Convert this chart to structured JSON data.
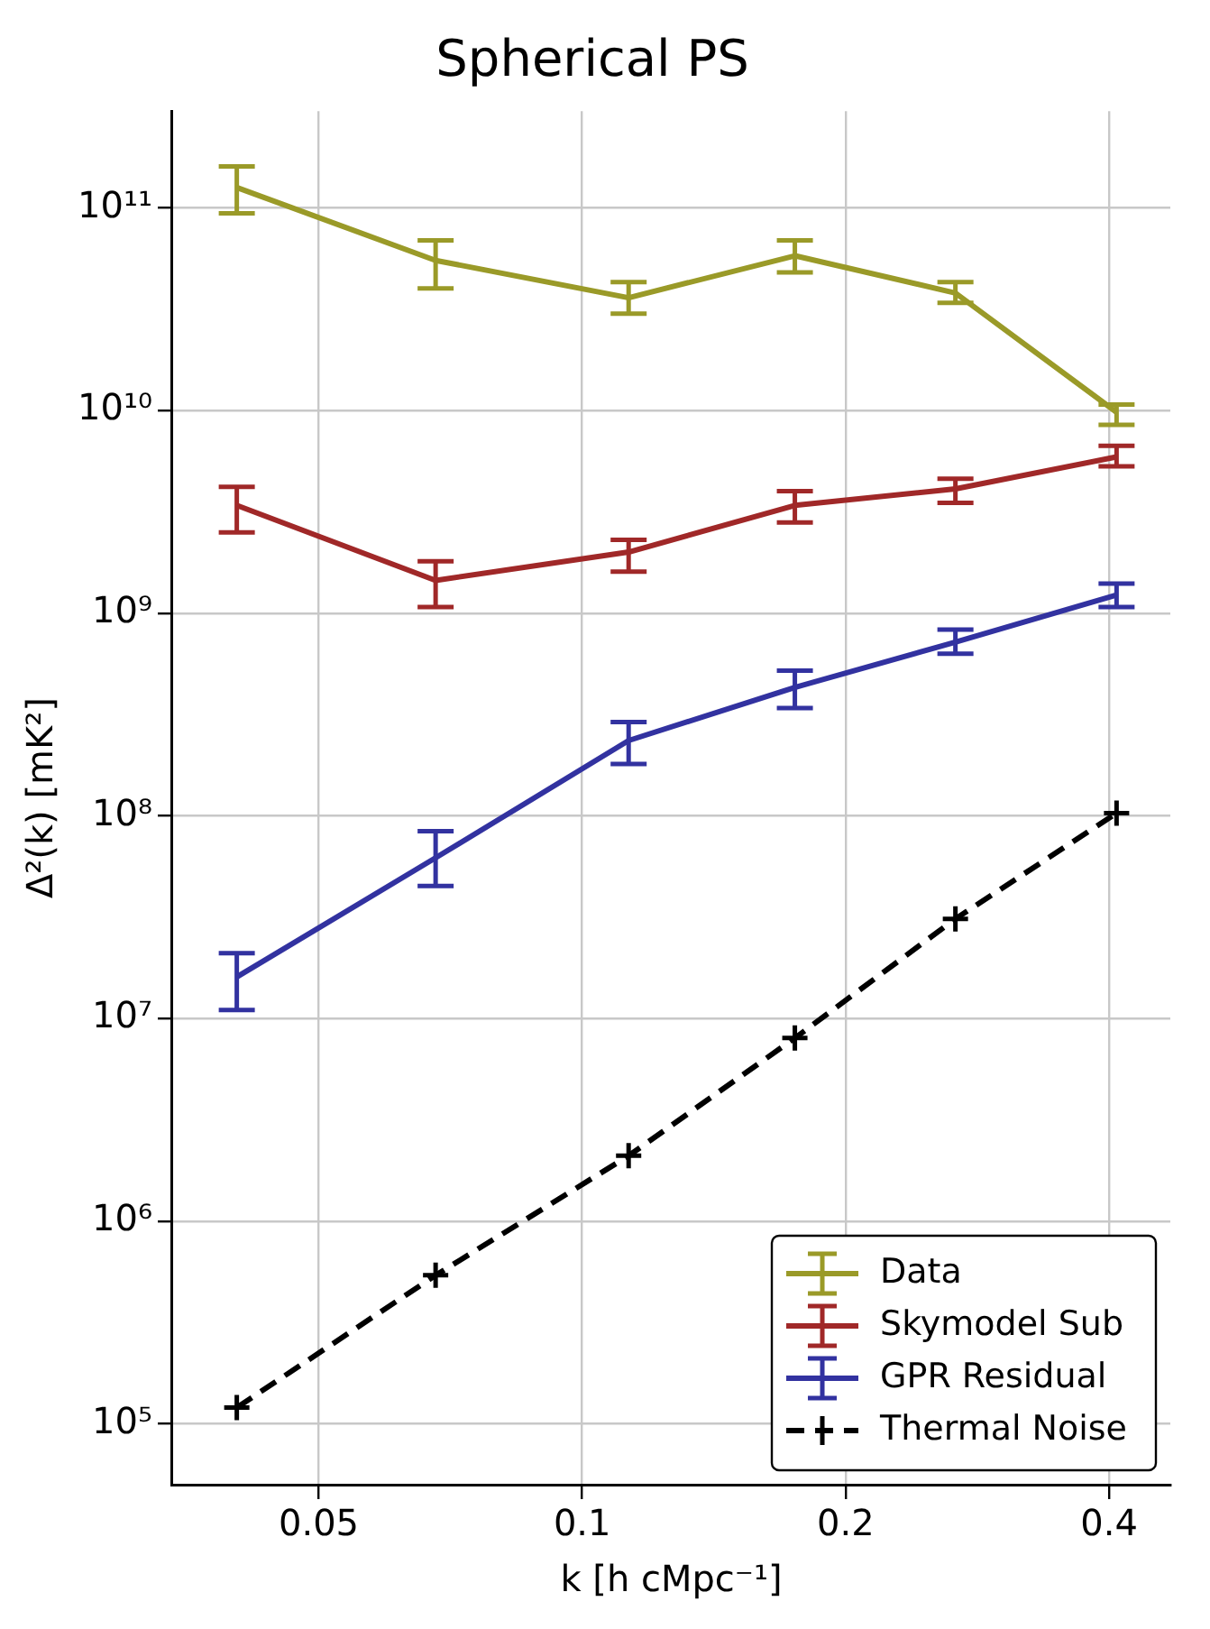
{
  "chart_data": {
    "type": "line",
    "title": "Spherical PS",
    "xlabel": "k [h cMpc⁻¹]",
    "ylabel": "Δ²(k) [mK²]",
    "x": [
      0.0403,
      0.068,
      0.113,
      0.175,
      0.267,
      0.408
    ],
    "series": [
      {
        "name": "Data",
        "color": "#9a9a28",
        "values": [
          126000000000.0,
          55000000000.0,
          36000000000.0,
          58000000000.0,
          38000000000.0,
          9800000000.0
        ],
        "errors": [
          [
            94000000000.0,
            160000000000.0
          ],
          [
            40000000000.0,
            69000000000.0
          ],
          [
            30000000000.0,
            43000000000.0
          ],
          [
            48000000000.0,
            69000000000.0
          ],
          [
            34000000000.0,
            43000000000.0
          ],
          [
            8500000000.0,
            10700000000.0
          ]
        ]
      },
      {
        "name": "Skymodel Sub",
        "color": "#a02828",
        "values": [
          3400000000.0,
          1450000000.0,
          2000000000.0,
          3400000000.0,
          4100000000.0,
          5900000000.0
        ],
        "errors": [
          [
            2500000000.0,
            4200000000.0
          ],
          [
            1070000000.0,
            1800000000.0
          ],
          [
            1600000000.0,
            2300000000.0
          ],
          [
            2800000000.0,
            4000000000.0
          ],
          [
            3500000000.0,
            4600000000.0
          ],
          [
            5300000000.0,
            6700000000.0
          ]
        ]
      },
      {
        "name": "GPR Residual",
        "color": "#3232a0",
        "values": [
          16000000.0,
          62000000.0,
          235000000.0,
          430000000.0,
          720000000.0,
          1230000000.0
        ],
        "errors": [
          [
            11000000.0,
            21000000.0
          ],
          [
            45000000.0,
            84000000.0
          ],
          [
            180000000.0,
            290000000.0
          ],
          [
            340000000.0,
            520000000.0
          ],
          [
            630000000.0,
            830000000.0
          ],
          [
            1070000000.0,
            1400000000.0
          ]
        ]
      },
      {
        "name": "Thermal Noise",
        "color": "#000000",
        "values": [
          120000.0,
          540000.0,
          2100000.0,
          8000000.0,
          31000000.0,
          103000000.0
        ],
        "marker": "cross",
        "line_style": "dashed"
      }
    ],
    "log": "xy",
    "xlim": [
      0.034,
      0.47
    ],
    "ylim": [
      50000.0,
      300000000000.0
    ],
    "xticks": [
      0.05,
      0.1,
      0.2,
      0.4
    ],
    "yticks": [
      {
        "value": 100000.0,
        "label": "10⁵"
      },
      {
        "value": 1000000.0,
        "label": "10⁶"
      },
      {
        "value": 10000000.0,
        "label": "10⁷"
      },
      {
        "value": 100000000.0,
        "label": "10⁸"
      },
      {
        "value": 1000000000.0,
        "label": "10⁹"
      },
      {
        "value": 10000000000.0,
        "label": "10¹⁰"
      },
      {
        "value": 100000000000.0,
        "label": "10¹¹"
      }
    ],
    "grid": true,
    "legend": "bottom right",
    "line_style": "solid"
  }
}
